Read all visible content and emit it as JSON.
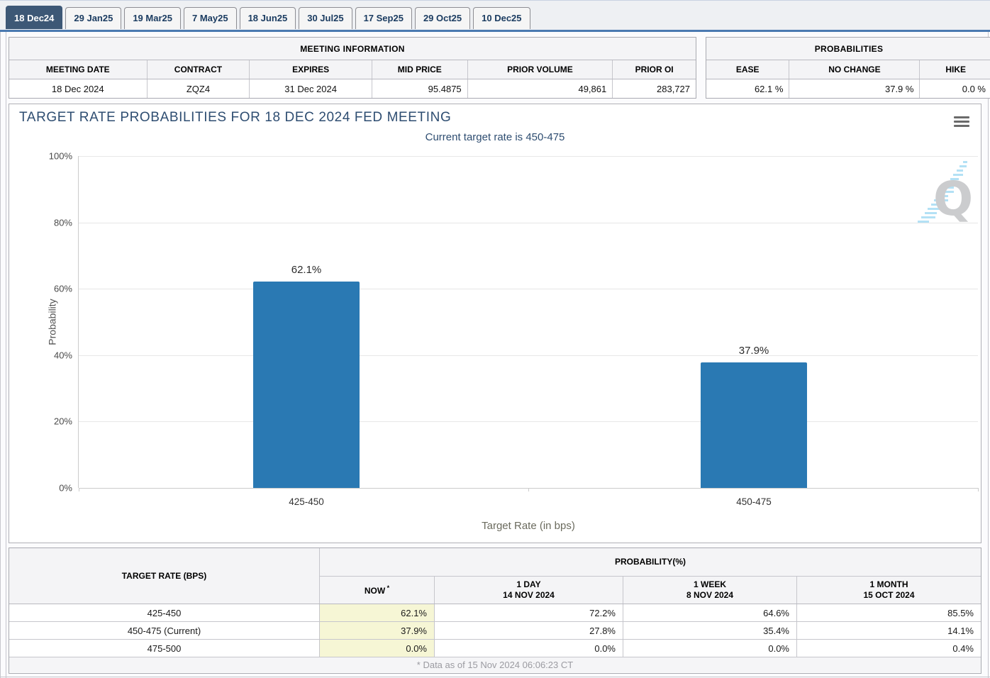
{
  "tabs": [
    {
      "label": "18 Dec24",
      "active": true
    },
    {
      "label": "29 Jan25",
      "active": false
    },
    {
      "label": "19 Mar25",
      "active": false
    },
    {
      "label": "7 May25",
      "active": false
    },
    {
      "label": "18 Jun25",
      "active": false
    },
    {
      "label": "30 Jul25",
      "active": false
    },
    {
      "label": "17 Sep25",
      "active": false
    },
    {
      "label": "29 Oct25",
      "active": false
    },
    {
      "label": "10 Dec25",
      "active": false
    }
  ],
  "meeting_info": {
    "title": "MEETING INFORMATION",
    "columns": [
      "MEETING DATE",
      "CONTRACT",
      "EXPIRES",
      "MID PRICE",
      "PRIOR VOLUME",
      "PRIOR OI"
    ],
    "values": [
      "18 Dec 2024",
      "ZQZ4",
      "31 Dec 2024",
      "95.4875",
      "49,861",
      "283,727"
    ]
  },
  "probabilities": {
    "title": "PROBABILITIES",
    "columns": [
      "EASE",
      "NO CHANGE",
      "HIKE"
    ],
    "values": [
      "62.1 %",
      "37.9 %",
      "0.0 %"
    ]
  },
  "chart": {
    "title": "TARGET RATE PROBABILITIES FOR 18 DEC 2024 FED MEETING",
    "subtitle": "Current target rate is 450-475",
    "menu_icon": "hamburger-icon",
    "watermark_letter": "Q"
  },
  "chart_data": {
    "type": "bar",
    "categories": [
      "425-450",
      "450-475"
    ],
    "values": [
      62.1,
      37.9
    ],
    "bar_labels": [
      "62.1%",
      "37.9%"
    ],
    "title": "TARGET RATE PROBABILITIES FOR 18 DEC 2024 FED MEETING",
    "subtitle": "Current target rate is 450-475",
    "xlabel": "Target Rate (in bps)",
    "ylabel": "Probability",
    "ylim": [
      0,
      100
    ],
    "yticks": [
      "0%",
      "20%",
      "40%",
      "60%",
      "80%",
      "100%"
    ],
    "grid": true,
    "legend": "none",
    "bar_color": "#2a79b3"
  },
  "history_table": {
    "row_header": "TARGET RATE (BPS)",
    "group_header": "PROBABILITY(%)",
    "col_headers": [
      {
        "line1": "NOW",
        "sup": "*",
        "line2": ""
      },
      {
        "line1": "1 DAY",
        "line2": "14 NOV 2024"
      },
      {
        "line1": "1 WEEK",
        "line2": "8 NOV 2024"
      },
      {
        "line1": "1 MONTH",
        "line2": "15 OCT 2024"
      }
    ],
    "rows": [
      {
        "rate": "425-450",
        "cells": [
          "62.1%",
          "72.2%",
          "64.6%",
          "85.5%"
        ]
      },
      {
        "rate": "450-475 (Current)",
        "cells": [
          "37.9%",
          "27.8%",
          "35.4%",
          "14.1%"
        ]
      },
      {
        "rate": "475-500",
        "cells": [
          "0.0%",
          "0.0%",
          "0.0%",
          "0.4%"
        ]
      }
    ],
    "footnote": "* Data as of 15 Nov 2024 06:06:23 CT"
  },
  "colors": {
    "active_tab": "#3d5876",
    "tab_rule": "#4a79b0",
    "bar": "#2a79b3",
    "now_highlight": "#f6f6d5",
    "title_text": "#2e4d71"
  }
}
